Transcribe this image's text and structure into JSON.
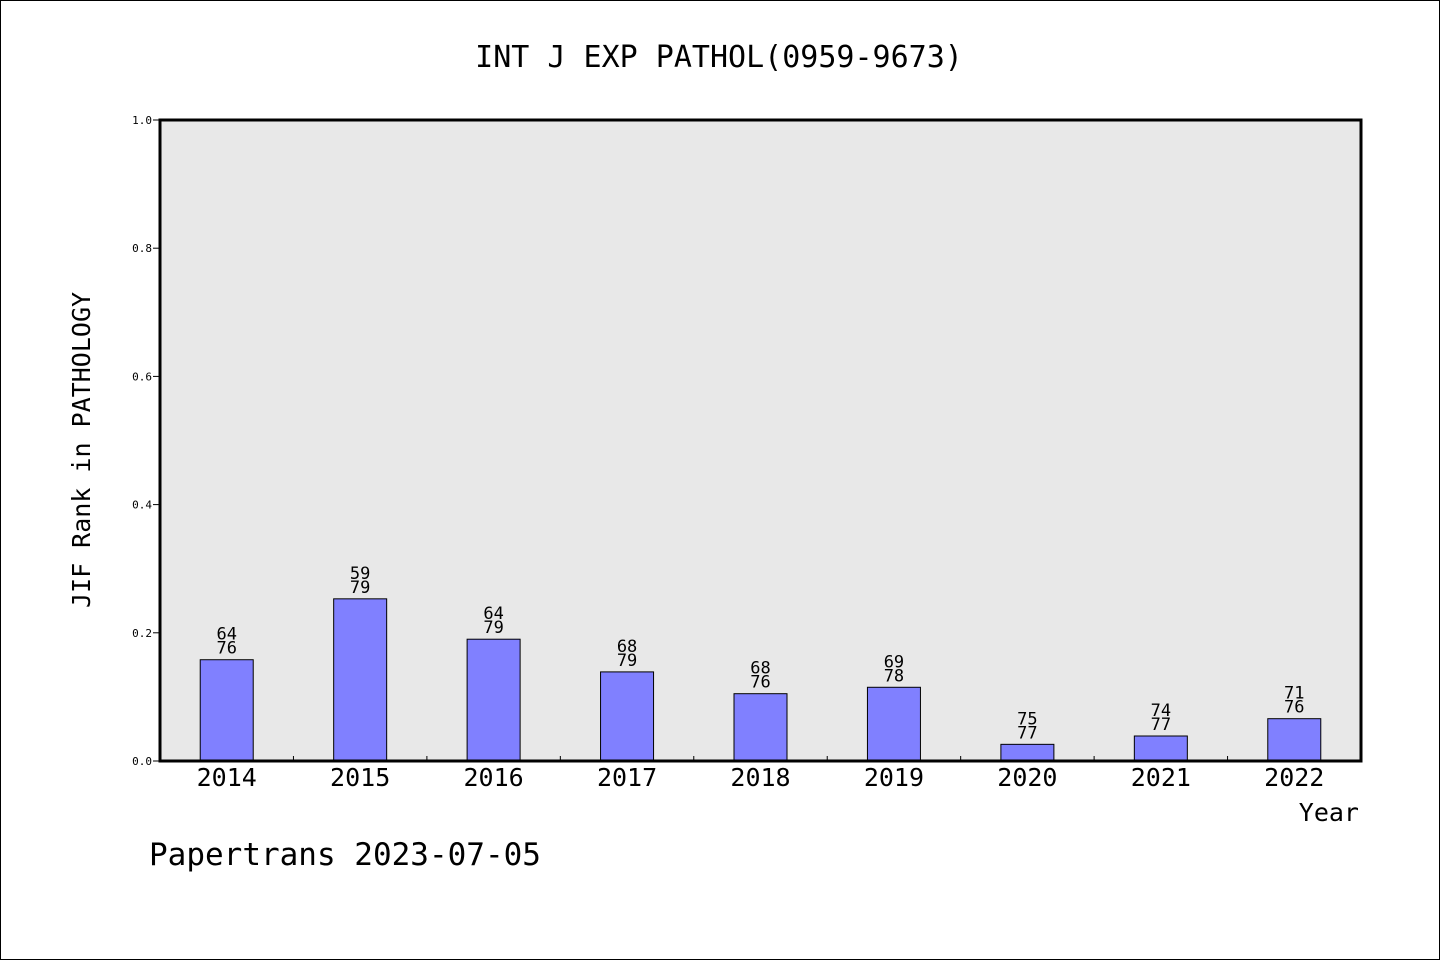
{
  "chart_data": {
    "type": "bar",
    "title": "INT J EXP PATHOL(0959-9673)",
    "xlabel": "Year",
    "ylabel": "JIF Rank in PATHOLOGY",
    "ylim": [
      0,
      1.0
    ],
    "yticks": [
      "0.0",
      "0.2",
      "0.4",
      "0.6",
      "0.8",
      "1.0"
    ],
    "categories": [
      "2014",
      "2015",
      "2016",
      "2017",
      "2018",
      "2019",
      "2020",
      "2021",
      "2022"
    ],
    "values": [
      0.158,
      0.253,
      0.19,
      0.139,
      0.105,
      0.115,
      0.026,
      0.039,
      0.066
    ],
    "rank_labels": [
      {
        "rank": "64",
        "total": "76"
      },
      {
        "rank": "59",
        "total": "79"
      },
      {
        "rank": "64",
        "total": "79"
      },
      {
        "rank": "68",
        "total": "79"
      },
      {
        "rank": "68",
        "total": "76"
      },
      {
        "rank": "69",
        "total": "78"
      },
      {
        "rank": "75",
        "total": "77"
      },
      {
        "rank": "74",
        "total": "77"
      },
      {
        "rank": "71",
        "total": "76"
      }
    ],
    "bar_color": "#8080ff",
    "plot_background": "#e8e8e8",
    "grid": false,
    "legend": "none"
  },
  "footer": {
    "watermark": "Papertrans 2023-07-05"
  }
}
